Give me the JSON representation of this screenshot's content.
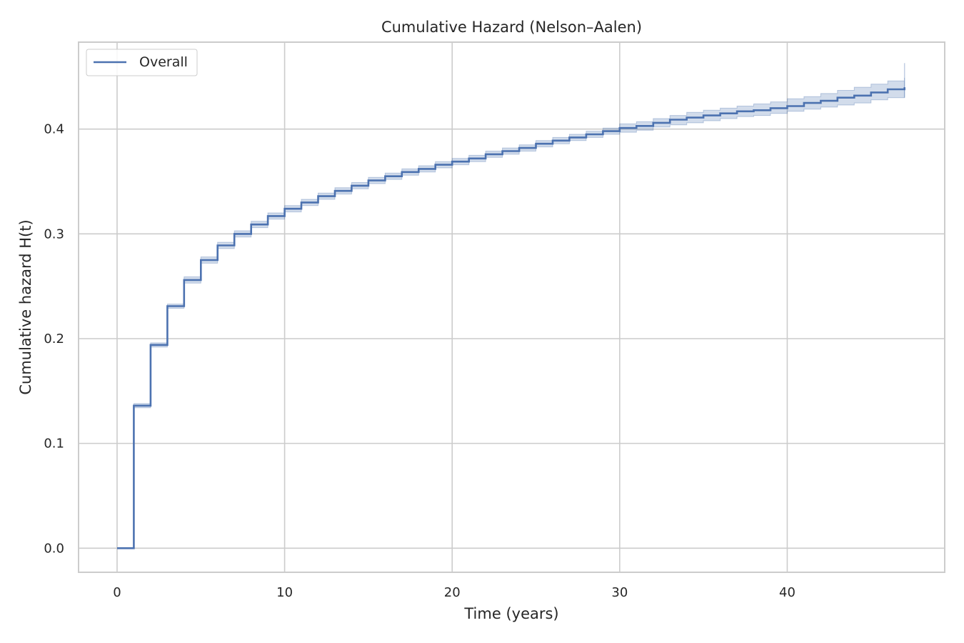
{
  "chart_data": {
    "type": "line",
    "step": true,
    "title": "Cumulative Hazard (Nelson–Aalen)",
    "xlabel": "Time (years)",
    "ylabel": "Cumulative hazard H(t)",
    "xlim": [
      -2.3,
      49.4
    ],
    "ylim": [
      -0.023,
      0.483
    ],
    "xticks": [
      0,
      10,
      20,
      30,
      40
    ],
    "yticks": [
      0.0,
      0.1,
      0.2,
      0.3,
      0.4
    ],
    "xtick_labels": [
      "0",
      "10",
      "20",
      "30",
      "40"
    ],
    "ytick_labels": [
      "0.0",
      "0.1",
      "0.2",
      "0.3",
      "0.4"
    ],
    "grid": true,
    "legend_position": "top-left",
    "colors": {
      "line": "#4c72b0",
      "band": "#4c72b0",
      "grid": "#cccccc",
      "spine": "#cccccc"
    },
    "series": [
      {
        "name": "Overall",
        "x": [
          0,
          1,
          2,
          3,
          4,
          5,
          6,
          7,
          8,
          9,
          10,
          11,
          12,
          13,
          14,
          15,
          16,
          17,
          18,
          19,
          20,
          21,
          22,
          23,
          24,
          25,
          26,
          27,
          28,
          29,
          30,
          31,
          32,
          33,
          34,
          35,
          36,
          37,
          38,
          39,
          40,
          41,
          42,
          43,
          44,
          45,
          46,
          47
        ],
        "y": [
          0.0,
          0.136,
          0.194,
          0.231,
          0.256,
          0.275,
          0.289,
          0.3,
          0.309,
          0.317,
          0.324,
          0.33,
          0.336,
          0.341,
          0.346,
          0.351,
          0.355,
          0.359,
          0.362,
          0.366,
          0.369,
          0.372,
          0.376,
          0.379,
          0.382,
          0.386,
          0.389,
          0.392,
          0.395,
          0.398,
          0.401,
          0.403,
          0.406,
          0.409,
          0.411,
          0.413,
          0.415,
          0.417,
          0.418,
          0.42,
          0.422,
          0.425,
          0.427,
          0.43,
          0.432,
          0.435,
          0.438,
          0.44
        ],
        "ci_lower": [
          0.0,
          0.134,
          0.192,
          0.229,
          0.253,
          0.272,
          0.286,
          0.297,
          0.306,
          0.314,
          0.321,
          0.327,
          0.333,
          0.338,
          0.343,
          0.348,
          0.352,
          0.356,
          0.359,
          0.363,
          0.366,
          0.369,
          0.373,
          0.376,
          0.379,
          0.383,
          0.386,
          0.389,
          0.392,
          0.395,
          0.397,
          0.399,
          0.402,
          0.404,
          0.406,
          0.408,
          0.41,
          0.412,
          0.413,
          0.415,
          0.417,
          0.419,
          0.421,
          0.423,
          0.425,
          0.428,
          0.43,
          0.43
        ],
        "ci_upper": [
          0.0,
          0.138,
          0.196,
          0.233,
          0.259,
          0.278,
          0.292,
          0.303,
          0.312,
          0.32,
          0.327,
          0.333,
          0.339,
          0.344,
          0.349,
          0.354,
          0.358,
          0.362,
          0.365,
          0.369,
          0.372,
          0.375,
          0.379,
          0.382,
          0.385,
          0.389,
          0.392,
          0.395,
          0.398,
          0.401,
          0.405,
          0.407,
          0.41,
          0.413,
          0.416,
          0.418,
          0.42,
          0.422,
          0.424,
          0.426,
          0.429,
          0.431,
          0.434,
          0.437,
          0.44,
          0.443,
          0.446,
          0.449
        ],
        "x_end": 47.0,
        "ci_end_upper": 0.463
      }
    ]
  }
}
